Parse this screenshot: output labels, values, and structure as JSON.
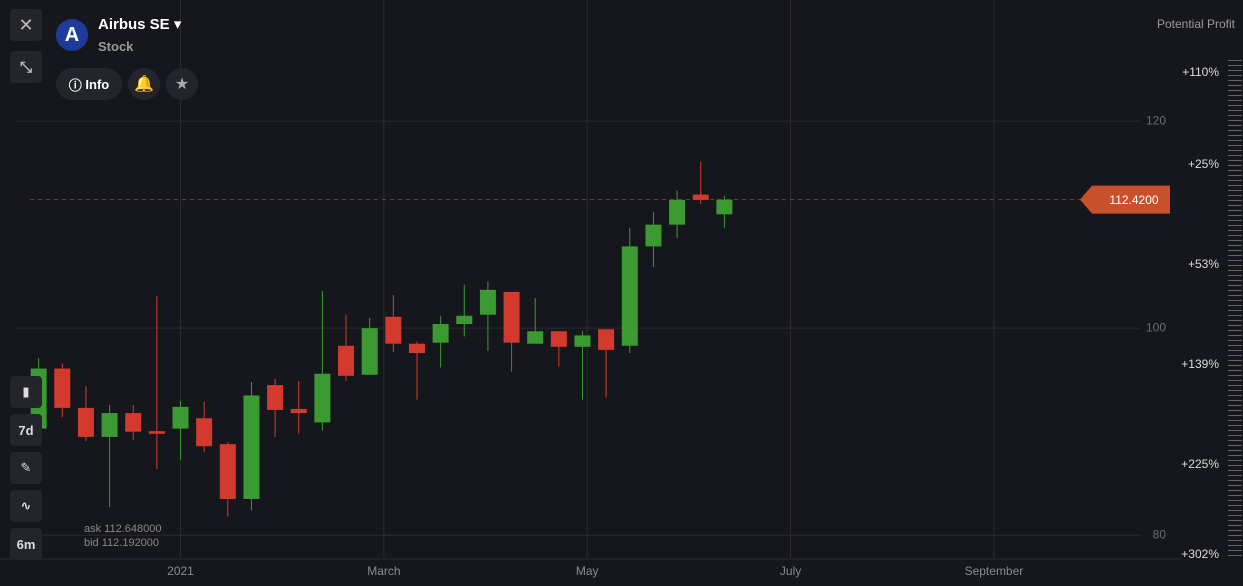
{
  "header": {
    "title": "Airbus SE",
    "subtitle": "Stock",
    "info_button": "Info"
  },
  "toolbar": {
    "interval": "7d",
    "range": "6m"
  },
  "quote": {
    "ask": "ask 112.648000",
    "bid": "bid 112.192000"
  },
  "potential_profit": {
    "title": "Potential Profit",
    "labels": [
      "+110%",
      "+25%",
      "+53%",
      "+139%",
      "+225%",
      "+302%"
    ]
  },
  "chart_data": {
    "type": "candlestick",
    "up_color": "#3b9a32",
    "down_color": "#d23a2e",
    "x": [
      0,
      1,
      2,
      3,
      4,
      5,
      6,
      7,
      8,
      9,
      10,
      11,
      12,
      13,
      14,
      15,
      16,
      17,
      18,
      19,
      20,
      21,
      22,
      23,
      24,
      25,
      26,
      27,
      28,
      29
    ],
    "open": [
      90.3,
      96.1,
      92.3,
      89.5,
      91.8,
      90.05,
      90.3,
      91.3,
      88.8,
      83.5,
      94.5,
      92.2,
      90.9,
      98.3,
      95.5,
      101.1,
      98.5,
      98.6,
      100.4,
      101.3,
      103.5,
      98.5,
      99.7,
      98.2,
      99.9,
      98.3,
      107.9,
      110.0,
      112.9,
      111.0
    ],
    "high": [
      97.1,
      96.6,
      94.4,
      92.6,
      92.6,
      103.1,
      93.0,
      92.9,
      89.0,
      94.8,
      95.1,
      94.9,
      103.6,
      101.3,
      101.0,
      103.2,
      98.7,
      101.2,
      104.2,
      104.5,
      103.5,
      102.9,
      99.7,
      99.7,
      99.9,
      109.7,
      111.2,
      113.3,
      116.1,
      112.8
    ],
    "low": [
      90.0,
      91.4,
      89.1,
      82.7,
      89.2,
      86.4,
      87.3,
      88.0,
      81.8,
      82.4,
      89.5,
      89.8,
      90.1,
      94.9,
      95.5,
      97.7,
      93.1,
      96.2,
      99.2,
      97.8,
      95.8,
      98.5,
      96.3,
      93.1,
      93.3,
      97.6,
      105.9,
      108.7,
      112.0,
      109.7
    ],
    "close": [
      96.1,
      92.3,
      89.5,
      91.8,
      90.0,
      89.8,
      92.4,
      88.6,
      83.5,
      93.5,
      92.1,
      91.8,
      95.6,
      95.4,
      100.0,
      98.5,
      97.6,
      100.4,
      101.2,
      103.7,
      98.6,
      99.7,
      98.2,
      99.3,
      97.9,
      107.9,
      110.0,
      112.4,
      112.4,
      112.42
    ],
    "price_marker": {
      "value": 112.42,
      "label": "112.4200"
    },
    "xlim": [
      -1,
      47
    ],
    "xticks": [
      {
        "value": 6,
        "label": "2021"
      },
      {
        "value": 14.6,
        "label": "March"
      },
      {
        "value": 23.2,
        "label": "May"
      },
      {
        "value": 31.8,
        "label": "July"
      },
      {
        "value": 40.4,
        "label": "September"
      }
    ],
    "ylim": [
      77.8,
      131.7
    ],
    "yticks": [
      80,
      100,
      120
    ],
    "grid": true
  }
}
